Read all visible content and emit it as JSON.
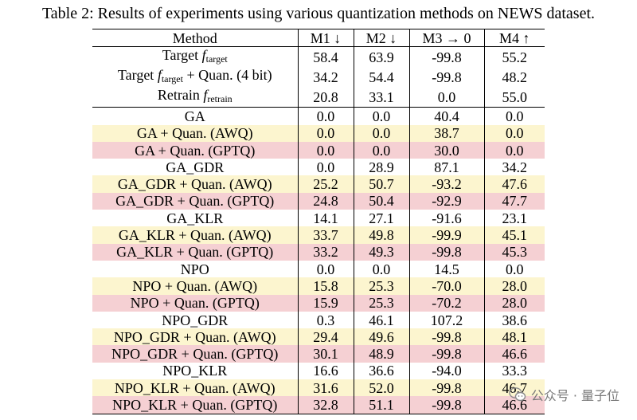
{
  "caption": "Table 2: Results of experiments using various quantization methods on NEWS dataset.",
  "headers": [
    "Method",
    "M1 ↓",
    "M2 ↓",
    "M3 → 0",
    "M4 ↑"
  ],
  "baseline_rows": [
    {
      "prefix": "Target ",
      "f": "f",
      "sub": "target",
      "suffix": "",
      "values": [
        "58.4",
        "63.9",
        "-99.8",
        "55.2"
      ]
    },
    {
      "prefix": "Target ",
      "f": "f",
      "sub": "target",
      "suffix": " + Quan. (4 bit)",
      "values": [
        "34.2",
        "54.4",
        "-99.8",
        "48.2"
      ]
    },
    {
      "prefix": "Retrain ",
      "f": "f",
      "sub": "retrain",
      "suffix": "",
      "values": [
        "20.8",
        "33.1",
        "0.0",
        "55.0"
      ]
    }
  ],
  "rows": [
    {
      "method": "GA",
      "values": [
        "0.0",
        "0.0",
        "40.4",
        "0.0"
      ],
      "kind": "base"
    },
    {
      "method": "GA + Quan. (AWQ)",
      "values": [
        "0.0",
        "0.0",
        "38.7",
        "0.0"
      ],
      "kind": "awq"
    },
    {
      "method": "GA + Quan. (GPTQ)",
      "values": [
        "0.0",
        "0.0",
        "30.0",
        "0.0"
      ],
      "kind": "gptq"
    },
    {
      "method": "GA_GDR",
      "values": [
        "0.0",
        "28.9",
        "87.1",
        "34.2"
      ],
      "kind": "base"
    },
    {
      "method": "GA_GDR + Quan. (AWQ)",
      "values": [
        "25.2",
        "50.7",
        "-93.2",
        "47.6"
      ],
      "kind": "awq"
    },
    {
      "method": "GA_GDR + Quan. (GPTQ)",
      "values": [
        "24.8",
        "50.4",
        "-92.9",
        "47.7"
      ],
      "kind": "gptq"
    },
    {
      "method": "GA_KLR",
      "values": [
        "14.1",
        "27.1",
        "-91.6",
        "23.1"
      ],
      "kind": "base"
    },
    {
      "method": "GA_KLR + Quan. (AWQ)",
      "values": [
        "33.7",
        "49.8",
        "-99.9",
        "45.1"
      ],
      "kind": "awq"
    },
    {
      "method": "GA_KLR + Quan. (GPTQ)",
      "values": [
        "33.2",
        "49.3",
        "-99.8",
        "45.3"
      ],
      "kind": "gptq"
    },
    {
      "method": "NPO",
      "values": [
        "0.0",
        "0.0",
        "14.5",
        "0.0"
      ],
      "kind": "base"
    },
    {
      "method": "NPO + Quan. (AWQ)",
      "values": [
        "15.8",
        "25.3",
        "-70.0",
        "28.0"
      ],
      "kind": "awq"
    },
    {
      "method": "NPO + Quan. (GPTQ)",
      "values": [
        "15.9",
        "25.3",
        "-70.2",
        "28.0"
      ],
      "kind": "gptq"
    },
    {
      "method": "NPO_GDR",
      "values": [
        "0.3",
        "46.1",
        "107.2",
        "38.6"
      ],
      "kind": "base"
    },
    {
      "method": "NPO_GDR + Quan. (AWQ)",
      "values": [
        "29.4",
        "49.6",
        "-99.8",
        "48.1"
      ],
      "kind": "awq"
    },
    {
      "method": "NPO_GDR + Quan. (GPTQ)",
      "values": [
        "30.1",
        "48.9",
        "-99.8",
        "46.6"
      ],
      "kind": "gptq"
    },
    {
      "method": "NPO_KLR",
      "values": [
        "16.6",
        "36.6",
        "-94.0",
        "33.3"
      ],
      "kind": "base"
    },
    {
      "method": "NPO_KLR + Quan. (AWQ)",
      "values": [
        "31.6",
        "52.0",
        "-99.8",
        "46.7"
      ],
      "kind": "awq"
    },
    {
      "method": "NPO_KLR + Quan. (GPTQ)",
      "values": [
        "32.8",
        "51.1",
        "-99.8",
        "46.6"
      ],
      "kind": "gptq"
    }
  ],
  "colors": {
    "awq_row": "#fcf5cf",
    "gptq_row": "#f5d0d3"
  },
  "watermark": {
    "text": "公众号 · 量子位",
    "icon": "wechat-icon"
  }
}
